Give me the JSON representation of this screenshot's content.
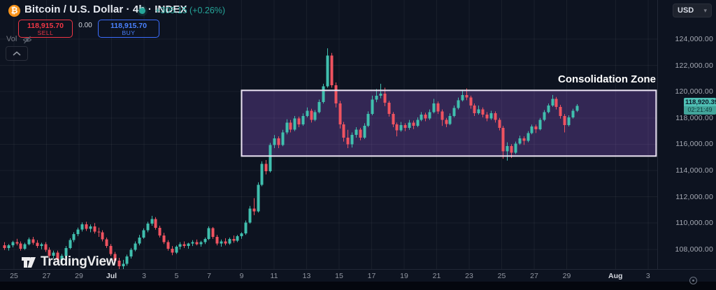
{
  "header": {
    "symbol_title": "Bitcoin / U.S. Dollar · 4h · INDEX",
    "change_text": "+305.15 (+0.26%)",
    "bitcoin_glyph": "₿"
  },
  "order_panel": {
    "sell_price": "118,915.70",
    "sell_label": "SELL",
    "spread": "0.00",
    "buy_price": "118,915.70",
    "buy_label": "BUY"
  },
  "indicator": {
    "label": "Vol"
  },
  "price_scale": {
    "currency_button": "USD",
    "chevron": "▾",
    "last_price": "118,920.39",
    "countdown": "02:21:49"
  },
  "annotation_label": "Consolidation Zone",
  "watermark_text": "TradingView",
  "colors": {
    "background": "#0d1320",
    "up": "#40bfae",
    "down": "#ef5360",
    "grid": "rgba(255,255,255,0.05)",
    "sell": "#f23645",
    "buy": "#4a82ff",
    "change": "#26a69a",
    "badge_bg": "#4fc0b5",
    "box_fill": "rgba(150,95,220,0.28)",
    "box_border": "#ece4f4",
    "bitcoin_orange": "#f7931a"
  },
  "chart_data": {
    "type": "candlestick",
    "title": "Bitcoin / U.S. Dollar",
    "interval": "4h",
    "exchange": "INDEX",
    "ylim": [
      106000,
      125500
    ],
    "grid": true,
    "price_axis_ticks": [
      124000,
      122000,
      120000,
      118000,
      116000,
      114000,
      112000,
      110000,
      108000
    ],
    "time_axis_ticks": [
      {
        "label": "25",
        "day": 1
      },
      {
        "label": "27",
        "day": 3
      },
      {
        "label": "29",
        "day": 5
      },
      {
        "label": "Jul",
        "day": 7,
        "month": true
      },
      {
        "label": "3",
        "day": 9
      },
      {
        "label": "5",
        "day": 11
      },
      {
        "label": "7",
        "day": 13
      },
      {
        "label": "9",
        "day": 15
      },
      {
        "label": "11",
        "day": 17
      },
      {
        "label": "13",
        "day": 19
      },
      {
        "label": "15",
        "day": 21
      },
      {
        "label": "17",
        "day": 23
      },
      {
        "label": "19",
        "day": 25
      },
      {
        "label": "21",
        "day": 27
      },
      {
        "label": "23",
        "day": 29
      },
      {
        "label": "25",
        "day": 31
      },
      {
        "label": "27",
        "day": 33
      },
      {
        "label": "29",
        "day": 35
      },
      {
        "label": "Aug",
        "day": 38,
        "month": true
      },
      {
        "label": "3",
        "day": 40
      }
    ],
    "start_day": 0.4,
    "candle_days": 0.2515,
    "last_price": 118920.39,
    "consolidation_box": {
      "label": "Consolidation Zone",
      "day_start": 15.0,
      "day_end": 40.5,
      "price_top": 120100,
      "price_bottom": 115100
    },
    "candles_ohlc": [
      [
        108300,
        108550,
        107950,
        108100
      ],
      [
        108100,
        108400,
        107900,
        108300
      ],
      [
        108300,
        108650,
        108150,
        108550
      ],
      [
        108550,
        108800,
        108300,
        108450
      ],
      [
        108450,
        108600,
        107900,
        108050
      ],
      [
        108050,
        108500,
        107950,
        108400
      ],
      [
        108400,
        108900,
        108300,
        108750
      ],
      [
        108750,
        108950,
        108350,
        108500
      ],
      [
        108500,
        108700,
        108100,
        108250
      ],
      [
        108250,
        108500,
        108000,
        108400
      ],
      [
        108400,
        108550,
        107800,
        107950
      ],
      [
        107950,
        108150,
        107350,
        107500
      ],
      [
        107500,
        107900,
        107300,
        107750
      ],
      [
        107750,
        107900,
        107000,
        107200
      ],
      [
        107200,
        107650,
        106900,
        107500
      ],
      [
        107500,
        108250,
        107400,
        108100
      ],
      [
        108100,
        108850,
        108000,
        108700
      ],
      [
        108700,
        109300,
        108550,
        109150
      ],
      [
        109150,
        109650,
        109000,
        109500
      ],
      [
        109500,
        110050,
        109350,
        109900
      ],
      [
        109900,
        110100,
        109400,
        109550
      ],
      [
        109550,
        109900,
        109300,
        109750
      ],
      [
        109750,
        110000,
        109200,
        109350
      ],
      [
        109350,
        109650,
        108950,
        109300
      ],
      [
        109300,
        109450,
        108600,
        108750
      ],
      [
        108750,
        108900,
        108100,
        108250
      ],
      [
        108250,
        108400,
        107500,
        107650
      ],
      [
        107650,
        107800,
        107000,
        107150
      ],
      [
        107150,
        107350,
        106500,
        106700
      ],
      [
        106700,
        107200,
        106350,
        106900
      ],
      [
        106900,
        107600,
        106750,
        107450
      ],
      [
        107450,
        108100,
        107300,
        107950
      ],
      [
        107950,
        108600,
        107850,
        108450
      ],
      [
        108450,
        109100,
        108300,
        108900
      ],
      [
        108900,
        109600,
        108800,
        109450
      ],
      [
        109450,
        110100,
        109300,
        109950
      ],
      [
        109950,
        110550,
        109800,
        110300
      ],
      [
        110300,
        110450,
        109500,
        109650
      ],
      [
        109650,
        109800,
        108900,
        109050
      ],
      [
        109050,
        109250,
        108400,
        108550
      ],
      [
        108550,
        108700,
        107900,
        108050
      ],
      [
        108050,
        108250,
        107550,
        107750
      ],
      [
        107750,
        108300,
        107650,
        108200
      ],
      [
        108200,
        108550,
        108000,
        108400
      ],
      [
        108400,
        108600,
        108100,
        108250
      ],
      [
        108250,
        108500,
        108050,
        108450
      ],
      [
        108450,
        108700,
        108250,
        108550
      ],
      [
        108550,
        108750,
        108300,
        108400
      ],
      [
        108400,
        108650,
        108200,
        108550
      ],
      [
        108550,
        108900,
        108400,
        108800
      ],
      [
        108800,
        109750,
        108700,
        109600
      ],
      [
        109600,
        109700,
        108800,
        108950
      ],
      [
        108950,
        109100,
        108300,
        108450
      ],
      [
        108450,
        108750,
        108200,
        108600
      ],
      [
        108600,
        108850,
        108300,
        108450
      ],
      [
        108450,
        108900,
        108350,
        108800
      ],
      [
        108800,
        109050,
        108500,
        108650
      ],
      [
        108650,
        109100,
        108550,
        109000
      ],
      [
        109000,
        109300,
        108800,
        109200
      ],
      [
        109200,
        110200,
        109100,
        110050
      ],
      [
        110050,
        111300,
        109950,
        111100
      ],
      [
        111100,
        111900,
        110600,
        110900
      ],
      [
        110900,
        113100,
        110800,
        112900
      ],
      [
        112900,
        114700,
        112800,
        114500
      ],
      [
        114500,
        114800,
        113700,
        113950
      ],
      [
        113950,
        116100,
        113850,
        115950
      ],
      [
        115950,
        116700,
        115700,
        116450
      ],
      [
        116450,
        116600,
        115700,
        115950
      ],
      [
        115950,
        117100,
        115850,
        116900
      ],
      [
        116900,
        117900,
        116750,
        117650
      ],
      [
        117650,
        117850,
        116900,
        117100
      ],
      [
        117100,
        118150,
        117000,
        117950
      ],
      [
        117950,
        118100,
        117300,
        117500
      ],
      [
        117500,
        118350,
        117400,
        118150
      ],
      [
        118150,
        118800,
        118050,
        118550
      ],
      [
        118550,
        118700,
        117650,
        117850
      ],
      [
        117850,
        118600,
        117750,
        118450
      ],
      [
        118450,
        119400,
        118350,
        119200
      ],
      [
        119200,
        120600,
        119100,
        120400
      ],
      [
        120400,
        123300,
        120300,
        122750
      ],
      [
        122750,
        122950,
        120300,
        120500
      ],
      [
        120500,
        120700,
        118800,
        119100
      ],
      [
        119100,
        119300,
        117200,
        117500
      ],
      [
        117500,
        117700,
        116200,
        116500
      ],
      [
        116500,
        117100,
        115700,
        116000
      ],
      [
        116000,
        116900,
        115750,
        116700
      ],
      [
        116700,
        117300,
        116500,
        117100
      ],
      [
        117100,
        117250,
        116300,
        116500
      ],
      [
        116500,
        117600,
        116400,
        117400
      ],
      [
        117400,
        118500,
        117300,
        118300
      ],
      [
        118300,
        119700,
        118200,
        119400
      ],
      [
        119400,
        120200,
        119200,
        119700
      ],
      [
        119700,
        120600,
        119500,
        119850
      ],
      [
        119850,
        120300,
        118900,
        119150
      ],
      [
        119150,
        119300,
        118100,
        118300
      ],
      [
        118300,
        118450,
        117300,
        117500
      ],
      [
        117500,
        117650,
        116600,
        117050
      ],
      [
        117050,
        117700,
        116950,
        117450
      ],
      [
        117450,
        117600,
        117000,
        117250
      ],
      [
        117250,
        117850,
        117100,
        117650
      ],
      [
        117650,
        117800,
        117150,
        117400
      ],
      [
        117400,
        118050,
        117300,
        117850
      ],
      [
        117850,
        118450,
        117750,
        118250
      ],
      [
        118250,
        118400,
        117750,
        117950
      ],
      [
        117950,
        118650,
        117850,
        118450
      ],
      [
        118450,
        119450,
        118350,
        119100
      ],
      [
        119100,
        119250,
        118300,
        118500
      ],
      [
        118500,
        118650,
        117400,
        117850
      ],
      [
        117850,
        118000,
        117300,
        117550
      ],
      [
        117550,
        118350,
        117450,
        118150
      ],
      [
        118150,
        118950,
        118050,
        118750
      ],
      [
        118750,
        119550,
        118650,
        119350
      ],
      [
        119350,
        120150,
        119250,
        119750
      ],
      [
        119750,
        120250,
        119350,
        119550
      ],
      [
        119550,
        119700,
        118700,
        118950
      ],
      [
        118950,
        119100,
        118150,
        118350
      ],
      [
        118350,
        118950,
        118250,
        118650
      ],
      [
        118650,
        118800,
        118050,
        118250
      ],
      [
        118250,
        118450,
        117750,
        117950
      ],
      [
        117950,
        118550,
        117850,
        118350
      ],
      [
        118350,
        118500,
        117650,
        117850
      ],
      [
        117850,
        118000,
        117050,
        117250
      ],
      [
        117250,
        117400,
        114900,
        115450
      ],
      [
        115450,
        116150,
        114750,
        115850
      ],
      [
        115850,
        116000,
        114950,
        115350
      ],
      [
        115350,
        116200,
        115250,
        116050
      ],
      [
        116050,
        116650,
        115950,
        116450
      ],
      [
        116450,
        116600,
        115950,
        116250
      ],
      [
        116250,
        117000,
        116150,
        116850
      ],
      [
        116850,
        117500,
        116750,
        117350
      ],
      [
        117350,
        117500,
        116850,
        117150
      ],
      [
        117150,
        118000,
        117050,
        117850
      ],
      [
        117850,
        118600,
        117750,
        118450
      ],
      [
        118450,
        119100,
        118350,
        118950
      ],
      [
        118950,
        119750,
        118850,
        119450
      ],
      [
        119450,
        119600,
        118650,
        118850
      ],
      [
        118850,
        119000,
        117950,
        118150
      ],
      [
        118150,
        118300,
        116900,
        117450
      ],
      [
        117450,
        118200,
        117350,
        118050
      ],
      [
        118050,
        118700,
        117950,
        118550
      ],
      [
        118550,
        119050,
        118450,
        118920
      ]
    ]
  }
}
